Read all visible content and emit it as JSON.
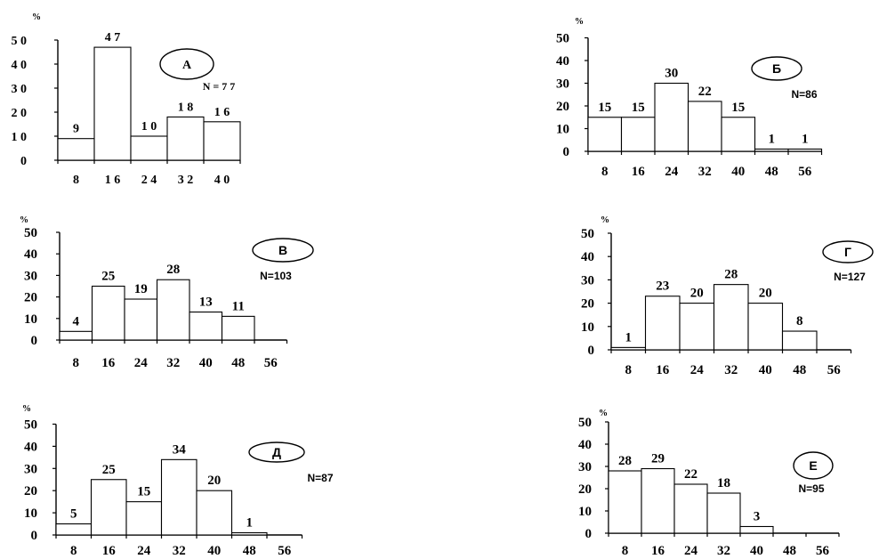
{
  "chart_data": [
    {
      "type": "bar",
      "panel_label": "А",
      "n_label": "N = 7 7",
      "yunit": "%",
      "ylim": [
        0,
        50
      ],
      "yticks": [
        "0",
        "1 0",
        "2 0",
        "3 0",
        "4 0",
        "5 0"
      ],
      "xticks": [
        "8",
        "1 6",
        "2 4",
        "3 2",
        "4 0"
      ],
      "values": [
        9,
        47,
        10,
        18,
        16
      ],
      "value_labels": [
        "9",
        "4 7",
        "1 0",
        "1 8",
        "1 6"
      ]
    },
    {
      "type": "bar",
      "panel_label": "Б",
      "n_label": "N=86",
      "yunit": "%",
      "ylim": [
        0,
        50
      ],
      "yticks": [
        "0",
        "10",
        "20",
        "30",
        "40",
        "50"
      ],
      "xticks": [
        "8",
        "16",
        "24",
        "32",
        "40",
        "48",
        "56"
      ],
      "values": [
        15,
        15,
        30,
        22,
        15,
        1,
        1
      ],
      "value_labels": [
        "15",
        "15",
        "30",
        "22",
        "15",
        "1",
        "1"
      ]
    },
    {
      "type": "bar",
      "panel_label": "В",
      "n_label": "N=103",
      "yunit": "%",
      "ylim": [
        0,
        50
      ],
      "yticks": [
        "0",
        "10",
        "20",
        "30",
        "40",
        "50"
      ],
      "xticks": [
        "8",
        "16",
        "24",
        "32",
        "40",
        "48",
        "56"
      ],
      "values": [
        4,
        25,
        19,
        28,
        13,
        11
      ],
      "value_labels": [
        "4",
        "25",
        "19",
        "28",
        "13",
        "11"
      ]
    },
    {
      "type": "bar",
      "panel_label": "Г",
      "n_label": "N=127",
      "yunit": "%",
      "ylim": [
        0,
        50
      ],
      "yticks": [
        "0",
        "10",
        "20",
        "30",
        "40",
        "50"
      ],
      "xticks": [
        "8",
        "16",
        "24",
        "32",
        "40",
        "48",
        "56"
      ],
      "values": [
        1,
        23,
        20,
        28,
        20,
        8
      ],
      "value_labels": [
        "1",
        "23",
        "20",
        "28",
        "20",
        "8"
      ]
    },
    {
      "type": "bar",
      "panel_label": "Д",
      "n_label": "N=87",
      "yunit": "%",
      "ylim": [
        0,
        50
      ],
      "yticks": [
        "0",
        "10",
        "20",
        "30",
        "40",
        "50"
      ],
      "xticks": [
        "8",
        "16",
        "24",
        "32",
        "40",
        "48",
        "56"
      ],
      "values": [
        5,
        25,
        15,
        34,
        20,
        1
      ],
      "value_labels": [
        "5",
        "25",
        "15",
        "34",
        "20",
        "1"
      ]
    },
    {
      "type": "bar",
      "panel_label": "Е",
      "n_label": "N=95",
      "yunit": "%",
      "ylim": [
        0,
        50
      ],
      "yticks": [
        "0",
        "10",
        "20",
        "30",
        "40",
        "50"
      ],
      "xticks": [
        "8",
        "16",
        "24",
        "32",
        "40",
        "48",
        "56"
      ],
      "values": [
        28,
        29,
        22,
        18,
        3
      ],
      "value_labels": [
        "28",
        "29",
        "22",
        "18",
        "3"
      ]
    }
  ]
}
